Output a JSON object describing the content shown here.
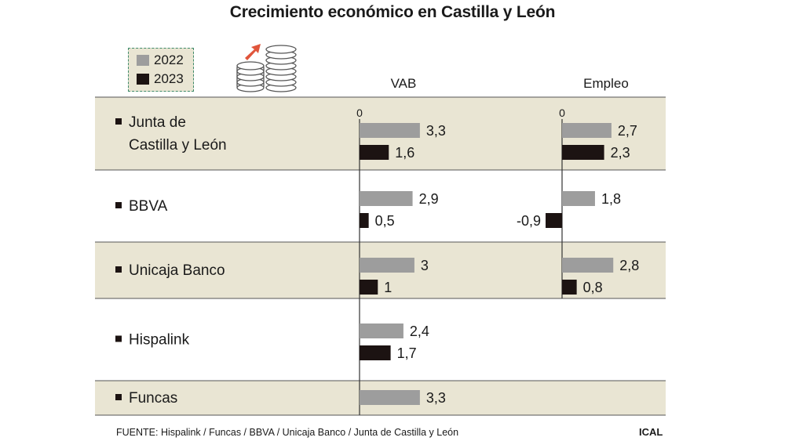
{
  "title": "Crecimiento económico en Castilla y León",
  "legend": {
    "items": [
      {
        "label": "2022",
        "color": "#9d9d9d"
      },
      {
        "label": "2023",
        "color": "#1c1312"
      }
    ]
  },
  "icon": "coins-growth-icon",
  "colors": {
    "series_2022": "#9d9d9d",
    "series_2023": "#1c1312",
    "shaded_row": "#e9e5d3",
    "lines": "#555555",
    "arrow": "#e0553b"
  },
  "chart_data": {
    "type": "bar",
    "orientation": "horizontal",
    "zero_label": "0",
    "panels": [
      {
        "name": "VAB",
        "series": [
          {
            "name": "2022",
            "values": [
              3.3,
              2.9,
              3,
              2.4,
              3.3
            ]
          },
          {
            "name": "2023",
            "values": [
              1.6,
              0.5,
              1,
              1.7,
              null
            ]
          }
        ]
      },
      {
        "name": "Empleo",
        "series": [
          {
            "name": "2022",
            "values": [
              2.7,
              1.8,
              2.8,
              null,
              null
            ]
          },
          {
            "name": "2023",
            "values": [
              2.3,
              -0.9,
              0.8,
              null,
              null
            ]
          }
        ]
      }
    ],
    "categories": [
      {
        "lines": [
          "Junta de",
          "Castilla y León"
        ],
        "shaded": true
      },
      {
        "lines": [
          "BBVA"
        ],
        "shaded": false
      },
      {
        "lines": [
          "Unicaja Banco"
        ],
        "shaded": true
      },
      {
        "lines": [
          "Hispalink"
        ],
        "shaded": false
      },
      {
        "lines": [
          "Funcas"
        ],
        "shaded": true
      }
    ],
    "value_labels": {
      "VAB": {
        "2022": [
          "3,3",
          "2,9",
          "3",
          "2,4",
          "3,3"
        ],
        "2023": [
          "1,6",
          "0,5",
          "1",
          "1,7",
          null
        ]
      },
      "Empleo": {
        "2022": [
          "2,7",
          "1,8",
          "2,8",
          null,
          null
        ],
        "2023": [
          "2,3",
          "-0,9",
          "0,8",
          null,
          null
        ]
      }
    }
  },
  "footer": {
    "source": "FUENTE: Hispalink / Funcas / BBVA / Unicaja Banco / Junta de Castilla y León",
    "brand": "ICAL"
  }
}
